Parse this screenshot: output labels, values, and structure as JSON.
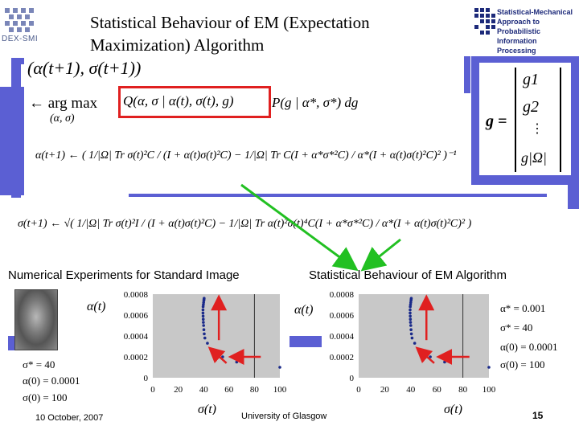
{
  "slide": {
    "title": "Statistical Behaviour of EM (Expectation Maximization) Algorithm",
    "logo_left": "DEX-SMI",
    "logo_right_lines": [
      "Statistical-Mechanical",
      "Approach to Probabilistic",
      "Information Processing"
    ],
    "footer_date": "10 October, 2007",
    "footer_org": "University of Glasgow",
    "page_number": "15"
  },
  "equations": {
    "eq1_left": "(α(t+1), σ(t+1))",
    "eq1_argmax": "← arg max",
    "eq1_under": "(α, σ)",
    "eq1_q": "Q(α, σ | α(t), σ(t), g)",
    "eq1_rest": "P(g | α*, σ*) dg",
    "g_vector_label": "g =",
    "g_vector": [
      "g1",
      "g2",
      "⋮",
      "g|Ω|"
    ],
    "eq2": "α(t+1) ← ( 1/|Ω| Tr σ(t)²C / (I + α(t)σ(t)²C) − 1/|Ω| Tr C(I + α*σ*²C) / α*(I + α(t)σ(t)²C)² )⁻¹",
    "eq3": "σ(t+1) ← √( 1/|Ω| Tr σ(t)²I / (I + α(t)σ(t)²C) − 1/|Ω| Tr α(t)²σ(t)⁴C(I + α*σ*²C) / α*(I + α(t)σ(t)²C)² )"
  },
  "left_panel": {
    "heading": "Numerical Experiments for Standard Image",
    "params": [
      "σ* = 40",
      "α(0) = 0.0001",
      "σ(0) = 100"
    ]
  },
  "right_panel": {
    "heading": "Statistical Behaviour of EM Algorithm",
    "params": [
      "α* = 0.001",
      "σ* = 40",
      "α(0) = 0.0001",
      "σ(0) = 100"
    ]
  },
  "colors": {
    "accent_bar": "#5b5fd3",
    "highlight_box": "#e02020",
    "arrow_green": "#22c022",
    "arrow_red": "#e02020",
    "points": "#1a2a8a",
    "plot_bg": "#c8c8c8"
  },
  "chart_data": [
    {
      "type": "scatter",
      "title": "",
      "xlabel": "σ(t)",
      "ylabel": "α(t)",
      "xlim": [
        0,
        100
      ],
      "ylim": [
        0,
        0.0008
      ],
      "x_ticks": [
        "0",
        "20",
        "40",
        "60",
        "80",
        "100"
      ],
      "y_ticks": [
        "0",
        "0.0002",
        "0.0004",
        "0.0006",
        "0.0008"
      ],
      "series": [
        {
          "x": [
            100,
            66,
            55,
            47,
            43,
            41,
            40.5,
            40.2,
            40,
            39.8,
            39.7,
            39.6,
            39.5,
            39.5,
            39.6,
            39.8,
            40,
            40.2,
            40.3,
            40.4
          ],
          "y": [
            0.0001,
            0.00015,
            0.0002,
            0.00027,
            0.00033,
            0.00038,
            0.00042,
            0.00046,
            0.0005,
            0.00053,
            0.00056,
            0.00059,
            0.00062,
            0.00065,
            0.00068,
            0.0007,
            0.00072,
            0.00074,
            0.00075,
            0.00076
          ]
        }
      ]
    },
    {
      "type": "scatter",
      "title": "",
      "xlabel": "σ(t)",
      "ylabel": "α(t)",
      "xlim": [
        0,
        100
      ],
      "ylim": [
        0,
        0.0008
      ],
      "x_ticks": [
        "0",
        "20",
        "40",
        "60",
        "80",
        "100"
      ],
      "y_ticks": [
        "0",
        "0.0002",
        "0.0004",
        "0.0006",
        "0.0008"
      ],
      "series": [
        {
          "x": [
            100,
            66,
            55,
            47,
            43,
            41,
            40.5,
            40.2,
            40,
            39.8,
            39.7,
            39.6,
            39.5,
            39.5,
            39.6,
            39.8,
            40,
            40.2,
            40.3,
            40.4
          ],
          "y": [
            0.0001,
            0.00015,
            0.0002,
            0.00027,
            0.00033,
            0.00038,
            0.00042,
            0.00046,
            0.0005,
            0.00053,
            0.00056,
            0.00059,
            0.00062,
            0.00065,
            0.00068,
            0.0007,
            0.00072,
            0.00074,
            0.00075,
            0.00076
          ]
        }
      ]
    }
  ]
}
